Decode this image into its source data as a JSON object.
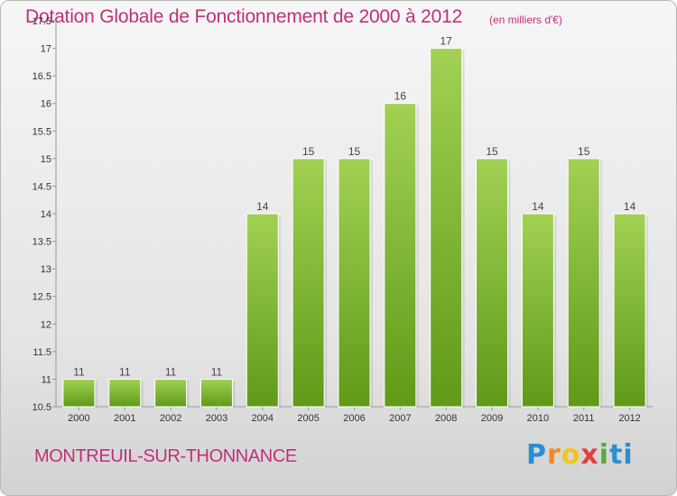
{
  "header": {
    "title": "Dotation Globale de Fonctionnement de 2000 à 2012",
    "unit": "(en milliers d'€)"
  },
  "footer": {
    "commune": "MONTREUIL-SUR-THONNANCE",
    "logo_letters": [
      "P",
      "r",
      "o",
      "x",
      "i",
      "ti"
    ]
  },
  "colors": {
    "bar_top": "#a2d154",
    "bar_bottom": "#5f9a17",
    "accent": "#c0307a"
  },
  "chart_data": {
    "type": "bar",
    "title": "Dotation Globale de Fonctionnement de 2000 à 2012",
    "ylabel": "(en milliers d'€)",
    "xlabel": "",
    "categories": [
      "2000",
      "2001",
      "2002",
      "2003",
      "2004",
      "2005",
      "2006",
      "2007",
      "2008",
      "2009",
      "2010",
      "2011",
      "2012"
    ],
    "values": [
      11,
      11,
      11,
      11,
      14,
      15,
      15,
      16,
      17,
      15,
      14,
      15,
      14
    ],
    "data_labels": [
      "11",
      "11",
      "11",
      "11",
      "14",
      "15",
      "15",
      "16",
      "17",
      "15",
      "14",
      "15",
      "14"
    ],
    "ylim": [
      10.5,
      17.5
    ],
    "yticks": [
      10.5,
      11,
      11.5,
      12,
      12.5,
      13,
      13.5,
      14,
      14.5,
      15,
      15.5,
      16,
      16.5,
      17,
      17.5
    ],
    "ytick_labels": [
      "10.5",
      "11",
      "11.5",
      "12",
      "12.5",
      "13",
      "13.5",
      "14",
      "14.5",
      "15",
      "15.5",
      "16",
      "16.5",
      "17",
      "17.5"
    ],
    "grid": false
  }
}
